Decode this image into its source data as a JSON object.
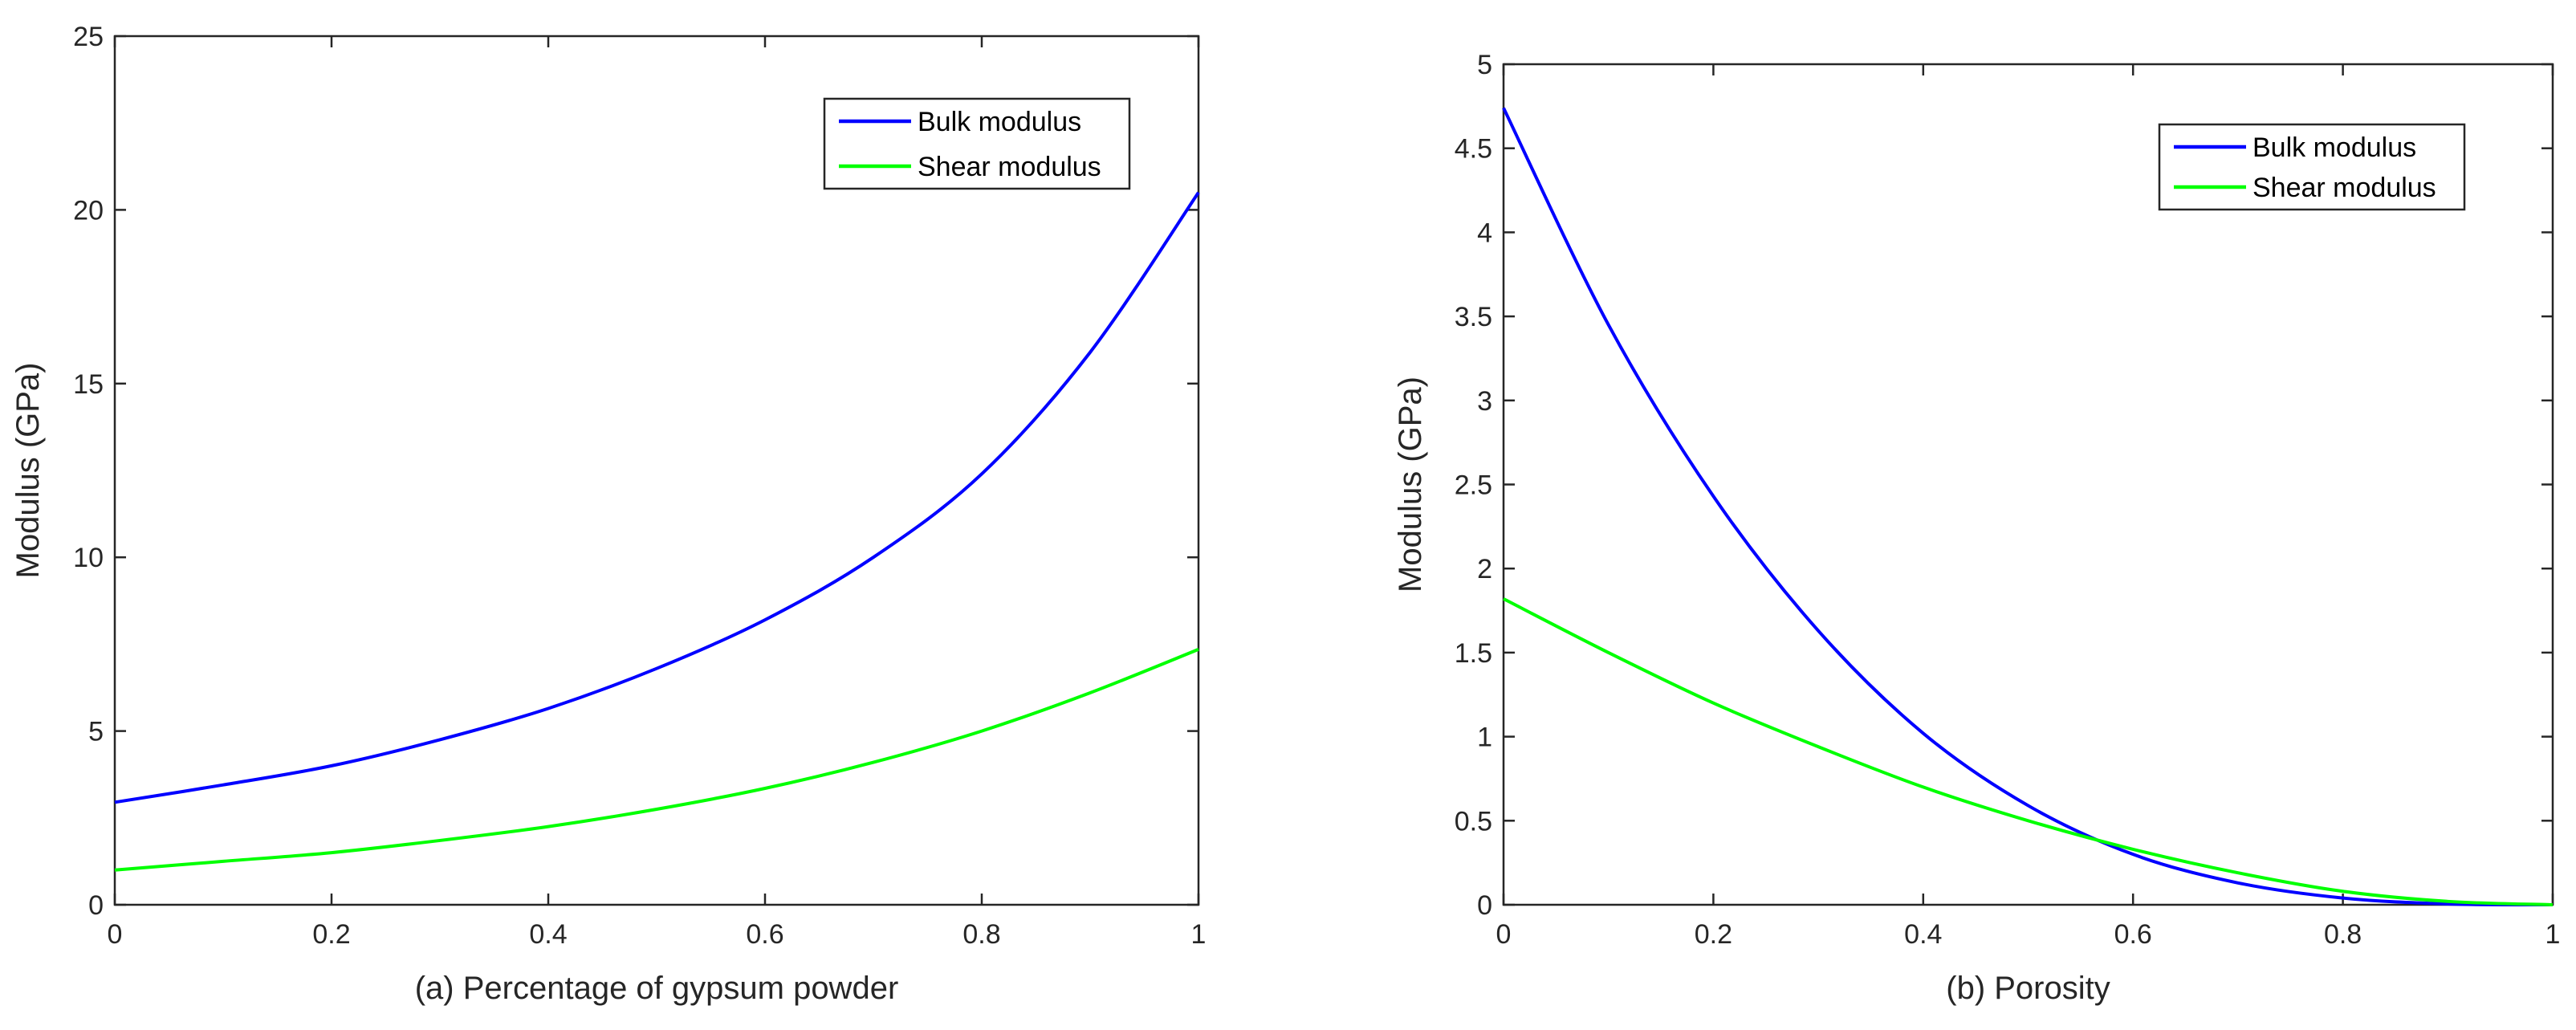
{
  "chart_data": [
    {
      "type": "line",
      "title": "",
      "xlabel": "(a) Percentage of gypsum powder",
      "ylabel": "Modulus (GPa)",
      "xlim": [
        0,
        1
      ],
      "ylim": [
        0,
        25
      ],
      "xticks": [
        0,
        0.2,
        0.4,
        0.6,
        0.8,
        1
      ],
      "xtick_labels": [
        "0",
        "0.2",
        "0.4",
        "0.6",
        "0.8",
        "1"
      ],
      "yticks": [
        0,
        5,
        10,
        15,
        20,
        25
      ],
      "ytick_labels": [
        "0",
        "5",
        "10",
        "15",
        "20",
        "25"
      ],
      "grid": false,
      "legend_position": "top-right",
      "series": [
        {
          "name": "Bulk modulus",
          "color": "#0000ff",
          "x": [
            0,
            0.1,
            0.2,
            0.3,
            0.4,
            0.5,
            0.6,
            0.7,
            0.8,
            0.9,
            1.0
          ],
          "values": [
            2.95,
            3.45,
            4.0,
            4.75,
            5.65,
            6.8,
            8.2,
            10.0,
            12.4,
            15.9,
            20.5
          ]
        },
        {
          "name": "Shear modulus",
          "color": "#00ff00",
          "x": [
            0,
            0.1,
            0.2,
            0.3,
            0.4,
            0.5,
            0.6,
            0.7,
            0.8,
            0.9,
            1.0
          ],
          "values": [
            1.0,
            1.25,
            1.5,
            1.85,
            2.25,
            2.75,
            3.35,
            4.1,
            5.0,
            6.1,
            7.35
          ]
        }
      ]
    },
    {
      "type": "line",
      "title": "",
      "xlabel": "(b) Porosity",
      "ylabel": "Modulus (GPa)",
      "xlim": [
        0,
        1
      ],
      "ylim": [
        0,
        5
      ],
      "xticks": [
        0,
        0.2,
        0.4,
        0.6,
        0.8,
        1
      ],
      "xtick_labels": [
        "0",
        "0.2",
        "0.4",
        "0.6",
        "0.8",
        "1"
      ],
      "yticks": [
        0,
        0.5,
        1,
        1.5,
        2,
        2.5,
        3,
        3.5,
        4,
        4.5,
        5
      ],
      "ytick_labels": [
        "0",
        "0.5",
        "1",
        "1.5",
        "2",
        "2.5",
        "3",
        "3.5",
        "4",
        "4.5",
        "5"
      ],
      "grid": false,
      "legend_position": "top-right",
      "series": [
        {
          "name": "Bulk modulus",
          "color": "#0000ff",
          "x": [
            0,
            0.1,
            0.2,
            0.3,
            0.4,
            0.5,
            0.6,
            0.7,
            0.8,
            0.9,
            1.0
          ],
          "values": [
            4.74,
            3.45,
            2.43,
            1.63,
            1.02,
            0.59,
            0.3,
            0.13,
            0.04,
            0.005,
            0.0
          ]
        },
        {
          "name": "Shear modulus",
          "color": "#00ff00",
          "x": [
            0,
            0.1,
            0.2,
            0.3,
            0.4,
            0.5,
            0.6,
            0.7,
            0.8,
            0.9,
            1.0
          ],
          "values": [
            1.82,
            1.5,
            1.2,
            0.94,
            0.7,
            0.5,
            0.33,
            0.19,
            0.08,
            0.02,
            0.0
          ]
        }
      ]
    }
  ]
}
